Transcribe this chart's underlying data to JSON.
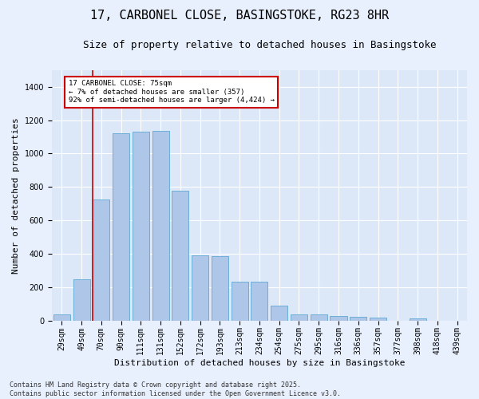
{
  "title": "17, CARBONEL CLOSE, BASINGSTOKE, RG23 8HR",
  "subtitle": "Size of property relative to detached houses in Basingstoke",
  "xlabel": "Distribution of detached houses by size in Basingstoke",
  "ylabel": "Number of detached properties",
  "categories": [
    "29sqm",
    "49sqm",
    "70sqm",
    "90sqm",
    "111sqm",
    "131sqm",
    "152sqm",
    "172sqm",
    "193sqm",
    "213sqm",
    "234sqm",
    "254sqm",
    "275sqm",
    "295sqm",
    "316sqm",
    "336sqm",
    "357sqm",
    "377sqm",
    "398sqm",
    "418sqm",
    "439sqm"
  ],
  "values": [
    35,
    245,
    725,
    1120,
    1130,
    1135,
    775,
    390,
    385,
    230,
    230,
    90,
    35,
    35,
    25,
    20,
    18,
    0,
    10,
    0,
    0
  ],
  "bar_color": "#aec6e8",
  "bar_edge_color": "#6baed6",
  "vline_x_idx": 2,
  "vline_color": "#cc0000",
  "annotation_text": "17 CARBONEL CLOSE: 75sqm\n← 7% of detached houses are smaller (357)\n92% of semi-detached houses are larger (4,424) →",
  "annotation_box_color": "#ffffff",
  "annotation_box_edge_color": "#cc0000",
  "bg_color": "#e8f0fe",
  "plot_bg_color": "#dce8f8",
  "grid_color": "#ffffff",
  "footer": "Contains HM Land Registry data © Crown copyright and database right 2025.\nContains public sector information licensed under the Open Government Licence v3.0.",
  "ylim": [
    0,
    1500
  ],
  "title_fontsize": 11,
  "subtitle_fontsize": 9,
  "axis_label_fontsize": 8,
  "tick_fontsize": 7,
  "footer_fontsize": 6
}
